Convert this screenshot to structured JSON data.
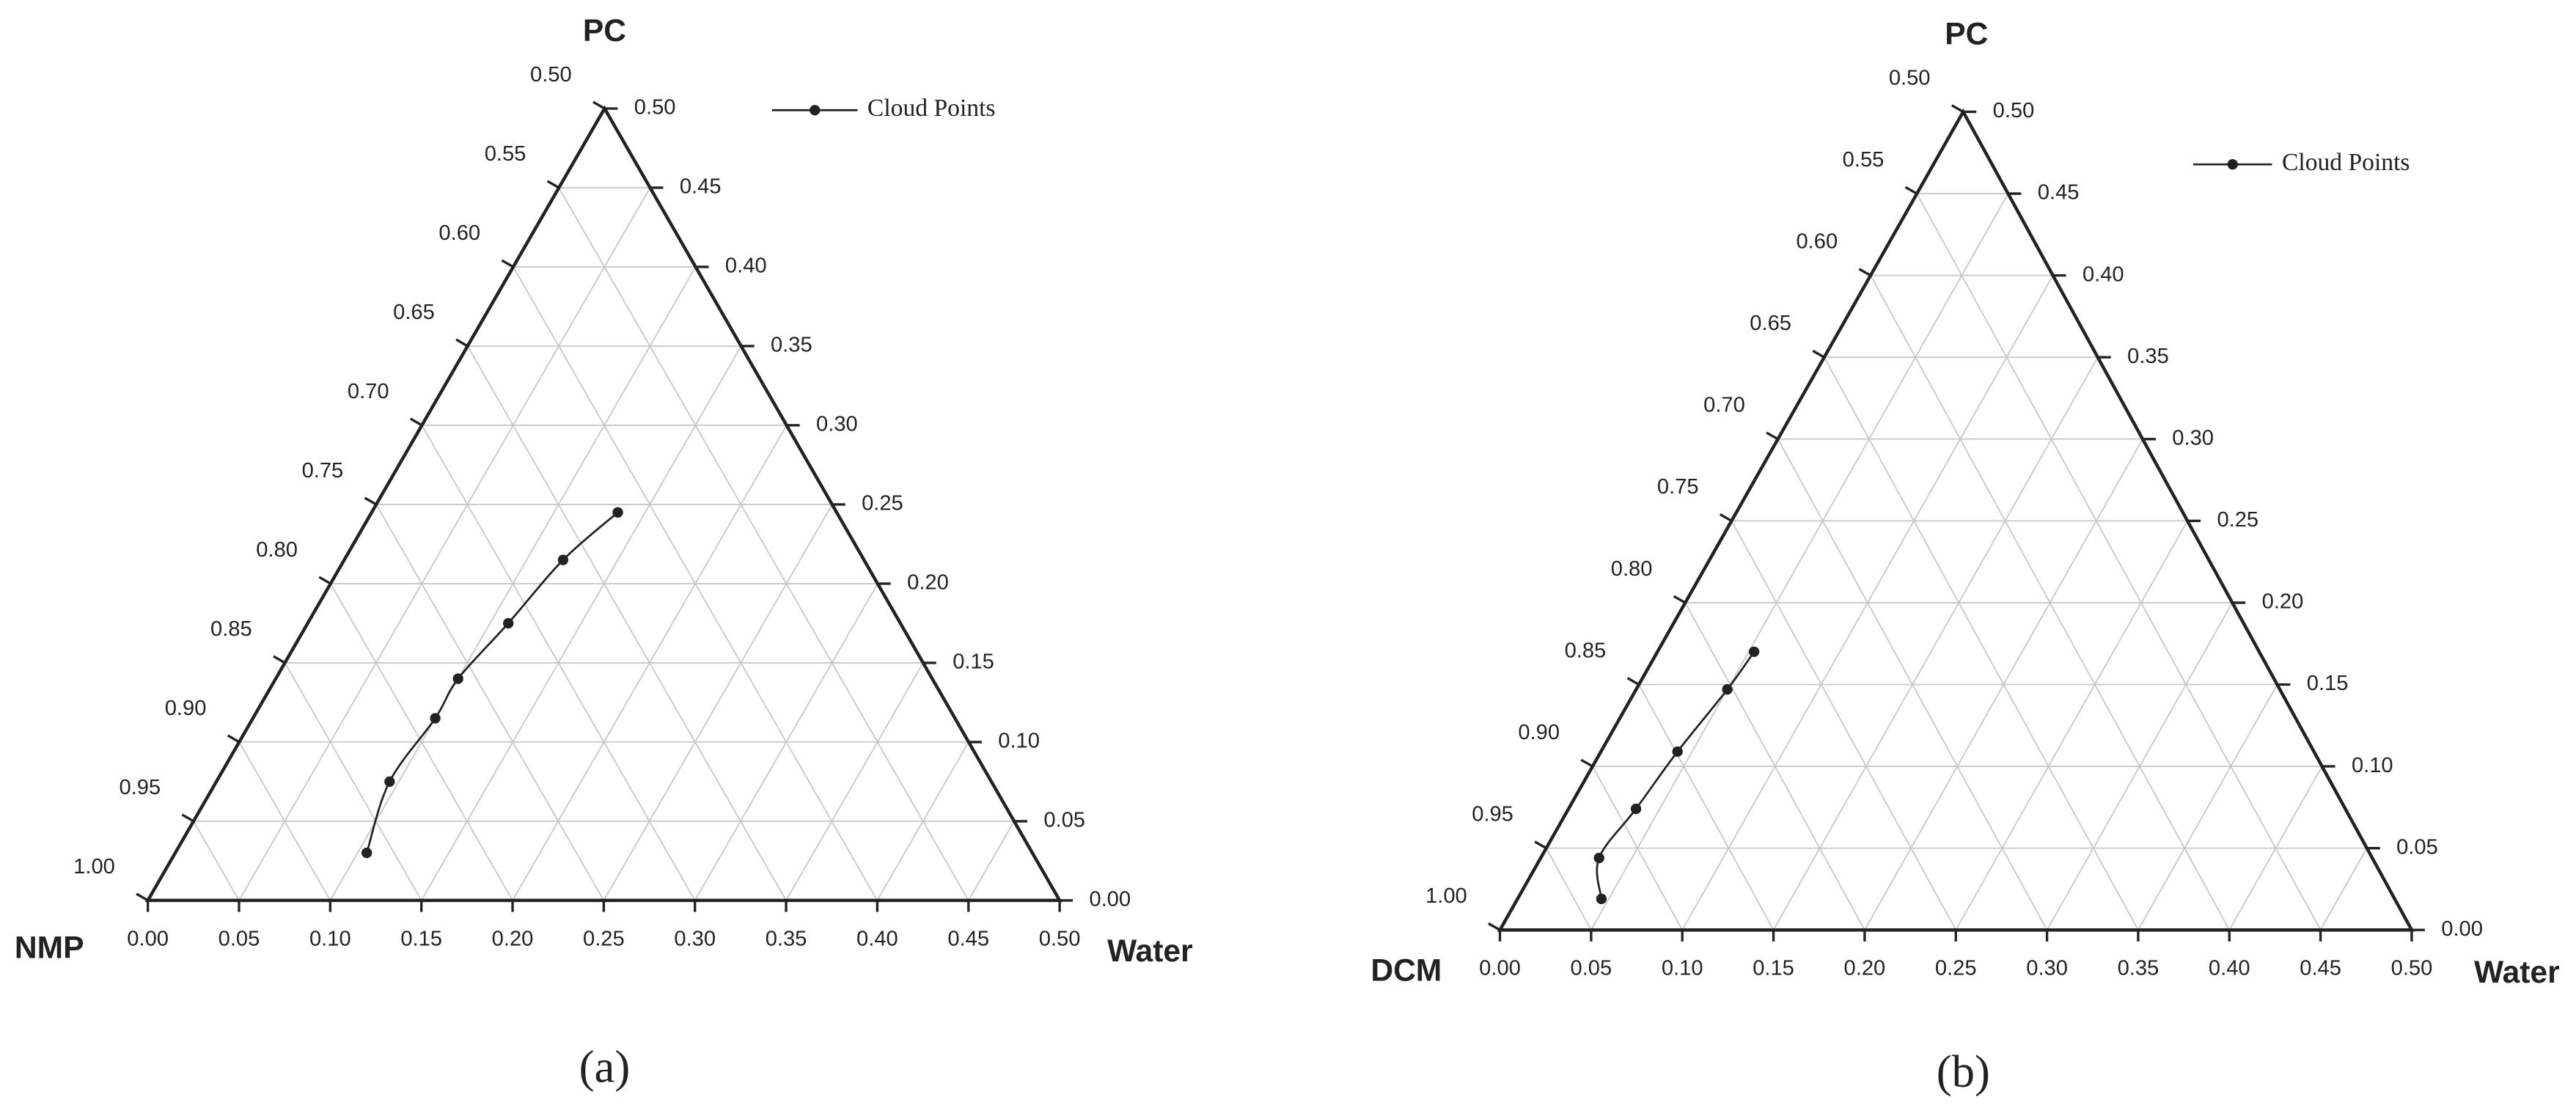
{
  "chart_data": [
    {
      "type": "ternary",
      "label": "(a)",
      "top_label": "PC",
      "left_label": "NMP",
      "right_label": "Water",
      "series": [
        {
          "name": "Cloud Points",
          "color": "#222222",
          "x": [
            0.135,
            0.12,
            0.11,
            0.1,
            0.1,
            0.095,
            0.105
          ],
          "values": [
            0.245,
            0.215,
            0.175,
            0.14,
            0.115,
            0.075,
            0.03
          ]
        }
      ],
      "xlim": [
        0,
        0.5
      ],
      "xticks": [
        {
          "value": 0,
          "label": "0.00"
        },
        {
          "value": 0.05,
          "label": "0.05"
        },
        {
          "value": 0.1,
          "label": "0.10"
        },
        {
          "value": 0.15,
          "label": "0.15"
        },
        {
          "value": 0.2,
          "label": "0.20"
        },
        {
          "value": 0.25,
          "label": "0.25"
        },
        {
          "value": 0.3,
          "label": "0.30"
        },
        {
          "value": 0.35,
          "label": "0.35"
        },
        {
          "value": 0.4,
          "label": "0.40"
        },
        {
          "value": 0.45,
          "label": "0.45"
        },
        {
          "value": 0.5,
          "label": "0.50"
        }
      ],
      "ylim": [
        0,
        0.5
      ],
      "yticks": [
        {
          "value": 0,
          "label": "0.00"
        },
        {
          "value": 0.05,
          "label": "0.05"
        },
        {
          "value": 0.1,
          "label": "0.10"
        },
        {
          "value": 0.15,
          "label": "0.15"
        },
        {
          "value": 0.2,
          "label": "0.20"
        },
        {
          "value": 0.25,
          "label": "0.25"
        },
        {
          "value": 0.3,
          "label": "0.30"
        },
        {
          "value": 0.35,
          "label": "0.35"
        },
        {
          "value": 0.4,
          "label": "0.40"
        },
        {
          "value": 0.45,
          "label": "0.45"
        },
        {
          "value": 0.5,
          "label": "0.50"
        }
      ],
      "zlim": [
        0.5,
        1
      ],
      "zticks": [
        {
          "value": 0.5,
          "label": "0.50"
        },
        {
          "value": 0.55,
          "label": "0.55"
        },
        {
          "value": 0.6,
          "label": "0.60"
        },
        {
          "value": 0.65,
          "label": "0.65"
        },
        {
          "value": 0.7,
          "label": "0.70"
        },
        {
          "value": 0.75,
          "label": "0.75"
        },
        {
          "value": 0.8,
          "label": "0.80"
        },
        {
          "value": 0.85,
          "label": "0.85"
        },
        {
          "value": 0.9,
          "label": "0.90"
        },
        {
          "value": 0.95,
          "label": "0.95"
        },
        {
          "value": 1,
          "label": "1.00"
        }
      ],
      "grid": true
    },
    {
      "type": "ternary",
      "label": "(b)",
      "top_label": "PC",
      "left_label": "DCM",
      "right_label": "Water",
      "series": [
        {
          "name": "Cloud Points",
          "color": "#222222",
          "x": [
            0.053,
            0.05,
            0.042,
            0.037,
            0.032,
            0.046
          ],
          "values": [
            0.17,
            0.147,
            0.109,
            0.074,
            0.044,
            0.019
          ]
        }
      ],
      "xlim": [
        0,
        0.5
      ],
      "xticks": [
        {
          "value": 0,
          "label": "0.00"
        },
        {
          "value": 0.05,
          "label": "0.05"
        },
        {
          "value": 0.1,
          "label": "0.10"
        },
        {
          "value": 0.15,
          "label": "0.15"
        },
        {
          "value": 0.2,
          "label": "0.20"
        },
        {
          "value": 0.25,
          "label": "0.25"
        },
        {
          "value": 0.3,
          "label": "0.30"
        },
        {
          "value": 0.35,
          "label": "0.35"
        },
        {
          "value": 0.4,
          "label": "0.40"
        },
        {
          "value": 0.45,
          "label": "0.45"
        },
        {
          "value": 0.5,
          "label": "0.50"
        }
      ],
      "ylim": [
        0,
        0.5
      ],
      "yticks": [
        {
          "value": 0,
          "label": "0.00"
        },
        {
          "value": 0.05,
          "label": "0.05"
        },
        {
          "value": 0.1,
          "label": "0.10"
        },
        {
          "value": 0.15,
          "label": "0.15"
        },
        {
          "value": 0.2,
          "label": "0.20"
        },
        {
          "value": 0.25,
          "label": "0.25"
        },
        {
          "value": 0.3,
          "label": "0.30"
        },
        {
          "value": 0.35,
          "label": "0.35"
        },
        {
          "value": 0.4,
          "label": "0.40"
        },
        {
          "value": 0.45,
          "label": "0.45"
        },
        {
          "value": 0.5,
          "label": "0.50"
        }
      ],
      "zlim": [
        0.5,
        1
      ],
      "zticks": [
        {
          "value": 0.5,
          "label": "0.50"
        },
        {
          "value": 0.55,
          "label": "0.55"
        },
        {
          "value": 0.6,
          "label": "0.60"
        },
        {
          "value": 0.65,
          "label": "0.65"
        },
        {
          "value": 0.7,
          "label": "0.70"
        },
        {
          "value": 0.75,
          "label": "0.75"
        },
        {
          "value": 0.8,
          "label": "0.80"
        },
        {
          "value": 0.85,
          "label": "0.85"
        },
        {
          "value": 0.9,
          "label": "0.90"
        },
        {
          "value": 0.95,
          "label": "0.95"
        },
        {
          "value": 1,
          "label": "1.00"
        }
      ],
      "grid": true
    }
  ]
}
